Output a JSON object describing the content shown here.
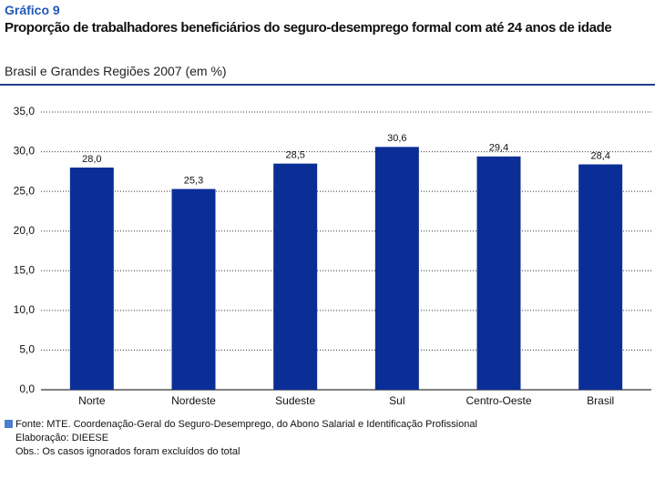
{
  "chart_data": {
    "type": "bar",
    "header_label": "Gráfico 9",
    "title": "Proporção de trabalhadores beneficiários do seguro-desemprego formal com até 24 anos de idade",
    "subtitle": "Brasil e Grandes Regiões 2007 (em %)",
    "categories": [
      "Norte",
      "Nordeste",
      "Sudeste",
      "Sul",
      "Centro-Oeste",
      "Brasil"
    ],
    "values": [
      28.0,
      25.3,
      28.5,
      30.6,
      29.4,
      28.4
    ],
    "value_labels": [
      "28,0",
      "25,3",
      "28,5",
      "30,6",
      "29,4",
      "28,4"
    ],
    "color": "#0b2e96",
    "ylim": [
      0,
      35
    ],
    "yticks": [
      {
        "value": 0,
        "label": "0,0"
      },
      {
        "value": 5,
        "label": "5,0"
      },
      {
        "value": 10,
        "label": "10,0"
      },
      {
        "value": 15,
        "label": "15,0"
      },
      {
        "value": 20,
        "label": "20,0"
      },
      {
        "value": 25,
        "label": "25,0"
      },
      {
        "value": 30,
        "label": "30,0"
      },
      {
        "value": 35,
        "label": "35,0"
      }
    ],
    "grid": true,
    "notes": [
      "Fonte: MTE. Coordenação-Geral do Seguro-Desemprego, do Abono Salarial e Identificação Profissional",
      "Elaboração: DIEESE",
      "Obs.: Os casos ignorados foram excluídos do total"
    ]
  }
}
